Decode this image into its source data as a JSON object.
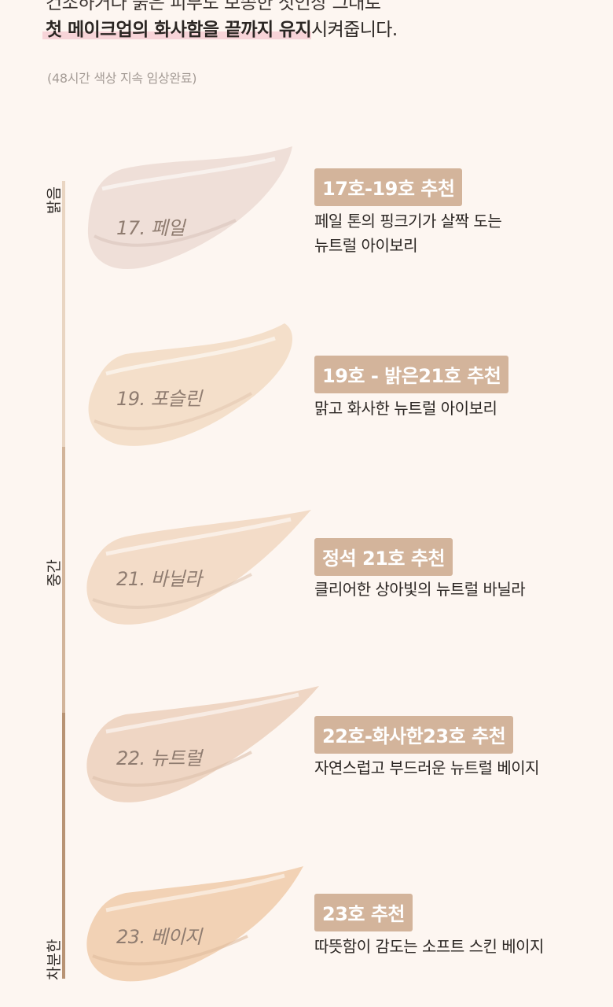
{
  "intro": {
    "top_cut": "건조하거나 붉은 피부도 보송한 첫인상 그대로",
    "headline_highlight": "첫 메이크업의 화사함을 끝까지 유지",
    "headline_rest": "시켜줍니다.",
    "note": "(48시간 색상 지속 임상완료)"
  },
  "scale": {
    "bright": "밝음",
    "middle": "중간",
    "dark": "차분한"
  },
  "shades": [
    {
      "label": "17. 페일",
      "badge": "17호-19호 추천",
      "desc_line1": "페일 톤의 핑크기가 살짝 도는",
      "desc_line2": "뉴트럴 아이보리",
      "color": "#efdfd8"
    },
    {
      "label": "19. 포슬린",
      "badge": "19호 - 밝은21호 추천",
      "desc_line1": "맑고 화사한 뉴트럴 아이보리",
      "desc_line2": "",
      "color": "#f4dfca"
    },
    {
      "label": "21. 바닐라",
      "badge": "정석 21호 추천",
      "desc_line1": "클리어한 상아빛의 뉴트럴 바닐라",
      "desc_line2": "",
      "color": "#f3dcc8"
    },
    {
      "label": "22. 뉴트럴",
      "badge": "22호-화사한23호 추천",
      "desc_line1": "자연스럽고 부드러운 뉴트럴 베이지",
      "desc_line2": "",
      "color": "#efd6c4"
    },
    {
      "label": "23. 베이지",
      "badge": "23호 추천",
      "desc_line1": "따뜻함이 감도는 소프트 스킨 베이지",
      "desc_line2": "",
      "color": "#f2d2b5"
    }
  ]
}
